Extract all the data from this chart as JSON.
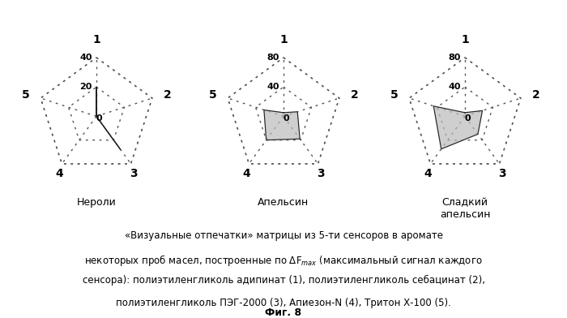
{
  "charts": [
    {
      "title": "Нероли",
      "max_val": 40,
      "ring_vals": [
        20,
        40
      ],
      "data": [
        20,
        0,
        28,
        0,
        0
      ]
    },
    {
      "title": "Апельсин",
      "max_val": 80,
      "ring_vals": [
        40,
        80
      ],
      "data": [
        5,
        20,
        38,
        40,
        28
      ]
    },
    {
      "title": "Сладкий\nапельсин",
      "max_val": 80,
      "ring_vals": [
        40,
        80
      ],
      "data": [
        5,
        25,
        30,
        55,
        45
      ]
    }
  ],
  "n_sensors": 5,
  "sensor_labels": [
    "1",
    "2",
    "3",
    "4",
    "5"
  ],
  "fill_color": "#bbbbbb",
  "fill_alpha": 0.7,
  "grid_color": "#555555",
  "grid_linewidth": 1.0,
  "center_label": "0",
  "background_color": "#ffffff",
  "caption_lines": [
    "«Визуальные отпечатки» матрицы из 5-ти сенсоров в аромате",
    "некоторых проб масел, построенные по ΔFmax (максимальный сигнал каждого",
    "сенсора): полиэтиленгликоль адипинат (1), полиэтиленгликоль себацинат (2),",
    "полиэтиленгликоль ПЭГ-2000 (3), Апиезон-N (4), Тритон Х-100 (5)."
  ],
  "fig_label": "Фиг. 8"
}
